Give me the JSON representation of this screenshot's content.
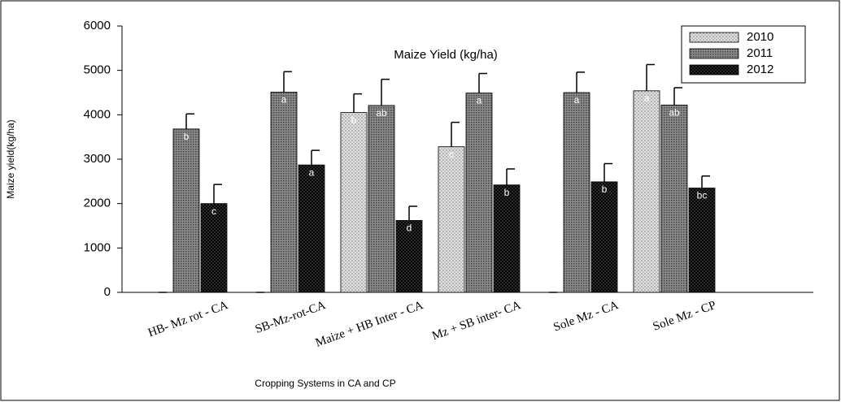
{
  "chart_data": {
    "type": "bar",
    "title": "Maize Yield (kg/ha)",
    "y_label": "Maize yield(kg/ha)",
    "x_label": "Cropping Systems in CA and CP",
    "categories": [
      "HB- Mz rot - CA",
      "SB-Mz-rot-CA",
      "Maize + HB Inter - CA",
      "Mz + SB inter- CA",
      "Sole Mz - CA",
      "Sole Mz - CP"
    ],
    "series": [
      {
        "name": "2010",
        "color": "#c8c8c8",
        "values": [
          null,
          null,
          4050,
          3280,
          null,
          4540
        ],
        "errors": [
          null,
          null,
          420,
          550,
          null,
          590
        ],
        "letters": [
          null,
          null,
          "b",
          "c",
          null,
          "a"
        ]
      },
      {
        "name": "2011",
        "color": "#7a7a7a",
        "values": [
          3680,
          4510,
          4210,
          4490,
          4500,
          4220
        ],
        "errors": [
          340,
          460,
          590,
          440,
          460,
          390
        ],
        "letters": [
          "b",
          "a",
          "ab",
          "a",
          "a",
          "ab"
        ]
      },
      {
        "name": "2012",
        "color": "#2a2a2a",
        "values": [
          2000,
          2870,
          1620,
          2420,
          2490,
          2350
        ],
        "errors": [
          430,
          330,
          320,
          360,
          410,
          270
        ],
        "letters": [
          "c",
          "a",
          "d",
          "b",
          "b",
          "bc"
        ]
      }
    ],
    "ylim": [
      0,
      6000
    ],
    "yticks": [
      0,
      1000,
      2000,
      3000,
      4000,
      5000,
      6000
    ],
    "legend": "upper right",
    "grid": false
  }
}
